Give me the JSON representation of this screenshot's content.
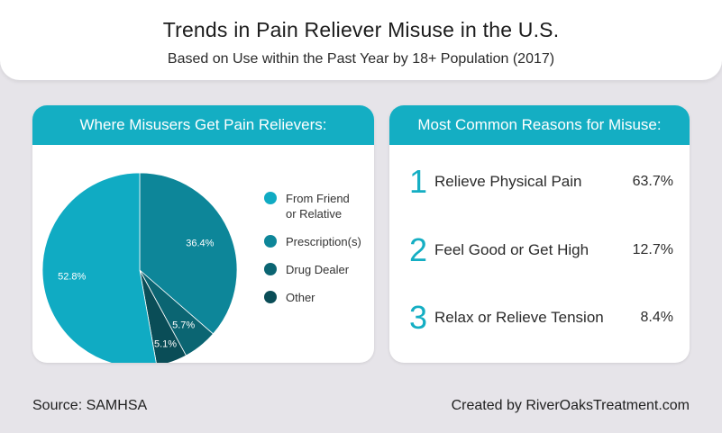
{
  "header": {
    "title": "Trends in Pain Reliever Misuse in the U.S.",
    "subtitle": "Based on Use within the Past Year by 18+ Population (2017)"
  },
  "left_card": {
    "title": "Where Misusers Get Pain Relievers:"
  },
  "right_card": {
    "title": "Most Common Reasons for Misuse:",
    "reasons": [
      {
        "num": "1",
        "text": "Relieve Physical Pain",
        "pct": "63.7%"
      },
      {
        "num": "2",
        "text": "Feel Good or Get High",
        "pct": "12.7%"
      },
      {
        "num": "3",
        "text": "Relax or Relieve Tension",
        "pct": "8.4%"
      }
    ]
  },
  "colors": {
    "accent": "#14aec3",
    "from_friend": "#10abc3",
    "prescription": "#0d8699",
    "drug_dealer": "#0b6572",
    "other": "#0a4d57",
    "number": "#14aec3"
  },
  "chart_data": {
    "type": "pie",
    "title": "Where Misusers Get Pain Relievers:",
    "slices": [
      {
        "label": "From Friend or Relative",
        "value": 52.8,
        "display": "52.8%",
        "color": "#10abc3"
      },
      {
        "label": "Prescription(s)",
        "value": 36.4,
        "display": "36.4%",
        "color": "#0d8699"
      },
      {
        "label": "Drug Dealer",
        "value": 5.7,
        "display": "5.7%",
        "color": "#0b6572"
      },
      {
        "label": "Other",
        "value": 5.1,
        "display": "5.1%",
        "color": "#0a4d57"
      }
    ],
    "legend": [
      {
        "label_lines": [
          "From Friend",
          "or Relative"
        ],
        "color": "#10abc3"
      },
      {
        "label_lines": [
          "Prescription(s)"
        ],
        "color": "#0d8699"
      },
      {
        "label_lines": [
          "Drug Dealer"
        ],
        "color": "#0b6572"
      },
      {
        "label_lines": [
          "Other"
        ],
        "color": "#0a4d57"
      }
    ],
    "legend_position": "right"
  },
  "footer": {
    "source": "Source: SAMHSA",
    "credit": "Created by RiverOaksTreatment.com"
  }
}
